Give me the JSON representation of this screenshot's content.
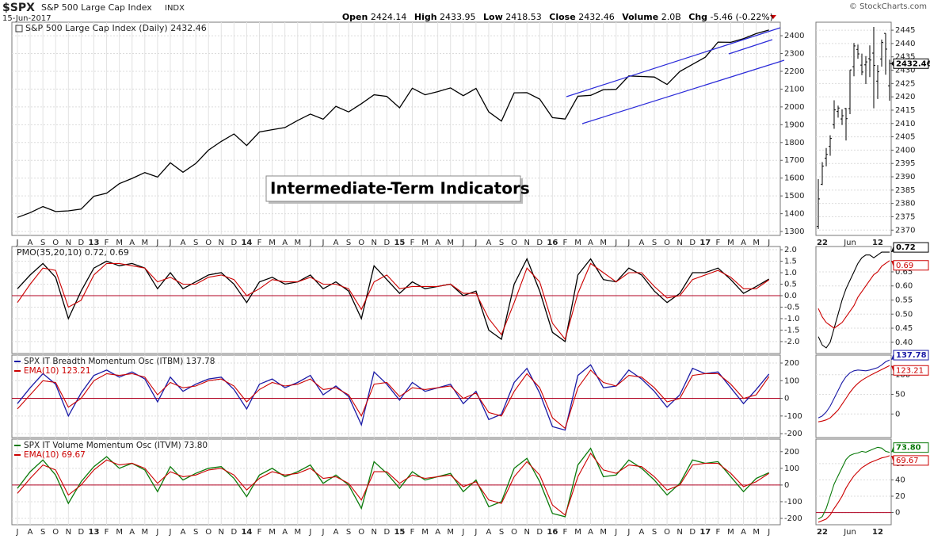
{
  "header": {
    "symbol": "$SPX",
    "name": "S&P 500 Large Cap Index",
    "exchange": "INDX",
    "date": "15-Jun-2017",
    "watermark": "© StockCharts.com",
    "stats": [
      {
        "label": "Open",
        "value": "2424.14"
      },
      {
        "label": "High",
        "value": "2433.95"
      },
      {
        "label": "Low",
        "value": "2418.53"
      },
      {
        "label": "Close",
        "value": "2432.46"
      },
      {
        "label": "Volume",
        "value": "2.0B"
      },
      {
        "label": "Chg",
        "value": "-5.46 (-0.22%)"
      }
    ]
  },
  "annotation": "Intermediate-Term Indicators",
  "chart_data": [
    {
      "type": "line",
      "title": "S&P 500 Large Cap Index (Daily) 2432.46",
      "grid": true,
      "categories": [
        "J",
        "A",
        "S",
        "O",
        "N",
        "D",
        "13",
        "F",
        "M",
        "A",
        "M",
        "J",
        "J",
        "A",
        "S",
        "O",
        "N",
        "D",
        "14",
        "F",
        "M",
        "A",
        "M",
        "J",
        "J",
        "A",
        "S",
        "O",
        "N",
        "D",
        "15",
        "F",
        "M",
        "A",
        "M",
        "J",
        "J",
        "A",
        "S",
        "O",
        "N",
        "D",
        "16",
        "F",
        "M",
        "A",
        "M",
        "J",
        "J",
        "A",
        "S",
        "O",
        "N",
        "D",
        "17",
        "F",
        "M",
        "A",
        "M",
        "J"
      ],
      "ylim": [
        1278,
        2476
      ],
      "yticks": [
        1300,
        1400,
        1500,
        1600,
        1700,
        1800,
        1900,
        2000,
        2100,
        2200,
        2300,
        2400
      ],
      "series": [
        {
          "color": "#000000",
          "values": [
            1379,
            1406,
            1440,
            1412,
            1416,
            1426,
            1498,
            1515,
            1569,
            1598,
            1631,
            1606,
            1686,
            1633,
            1682,
            1757,
            1806,
            1848,
            1783,
            1859,
            1872,
            1884,
            1924,
            1960,
            1931,
            2003,
            1972,
            2018,
            2068,
            2059,
            1995,
            2105,
            2068,
            2086,
            2107,
            2063,
            2104,
            1972,
            1920,
            2079,
            2080,
            2044,
            1940,
            1932,
            2060,
            2065,
            2097,
            2099,
            2174,
            2171,
            2168,
            2126,
            2199,
            2239,
            2279,
            2364,
            2363,
            2384,
            2412,
            2432
          ]
        }
      ]
    },
    {
      "type": "line",
      "title": "PMO(35,20,10) 0.72, 0.69",
      "grid": true,
      "reference_line": 0,
      "ylim": [
        -2.52,
        2.14
      ],
      "yticks": [
        {
          "value": -2,
          "label": "-2.0"
        },
        -1.5,
        {
          "value": -1,
          "label": "-1.0"
        },
        -0.5,
        {
          "value": 0,
          "label": "0.0"
        },
        0.5,
        {
          "value": 1,
          "label": "1.0"
        },
        1.5,
        {
          "value": 2,
          "label": "2.0"
        }
      ],
      "series": [
        {
          "color": "#000000",
          "values": [
            0.3,
            0.9,
            1.4,
            0.8,
            -1.0,
            0.2,
            1.2,
            1.5,
            1.3,
            1.4,
            1.2,
            0.3,
            1.0,
            0.3,
            0.6,
            0.9,
            1.0,
            0.5,
            -0.3,
            0.6,
            0.8,
            0.5,
            0.6,
            0.9,
            0.3,
            0.6,
            0.2,
            -1.0,
            1.3,
            0.7,
            0.1,
            0.6,
            0.3,
            0.4,
            0.5,
            0.0,
            0.2,
            -1.5,
            -1.9,
            0.5,
            1.6,
            0.2,
            -1.6,
            -2.0,
            0.9,
            1.6,
            0.7,
            0.6,
            1.2,
            0.9,
            0.2,
            -0.3,
            0.1,
            1.0,
            1.0,
            1.2,
            0.7,
            0.1,
            0.4,
            0.72
          ]
        },
        {
          "color": "#cc0000",
          "values": [
            -0.3,
            0.5,
            1.2,
            1.1,
            -0.5,
            -0.2,
            0.9,
            1.4,
            1.4,
            1.3,
            1.2,
            0.6,
            0.8,
            0.5,
            0.5,
            0.8,
            0.9,
            0.7,
            0.0,
            0.3,
            0.7,
            0.6,
            0.6,
            0.8,
            0.5,
            0.5,
            0.3,
            -0.6,
            0.6,
            0.9,
            0.3,
            0.4,
            0.4,
            0.4,
            0.5,
            0.1,
            0.1,
            -1.0,
            -1.7,
            -0.3,
            1.2,
            0.6,
            -1.2,
            -1.9,
            0.1,
            1.4,
            1.0,
            0.6,
            1.0,
            1.0,
            0.4,
            -0.1,
            0.0,
            0.7,
            0.9,
            1.1,
            0.8,
            0.3,
            0.3,
            0.69
          ]
        }
      ]
    },
    {
      "type": "line",
      "grid": true,
      "reference_line": 0,
      "ylim": [
        -222,
        245
      ],
      "yticks": [
        -200,
        -100,
        0,
        100,
        200
      ],
      "series": [
        {
          "name": "SPX IT Breadth Momentum Osc (ITBM) 137.78",
          "color": "#1a1aa6",
          "values": [
            -30,
            60,
            140,
            80,
            -100,
            30,
            130,
            160,
            120,
            150,
            110,
            -20,
            120,
            40,
            80,
            110,
            120,
            50,
            -60,
            80,
            110,
            60,
            90,
            130,
            20,
            70,
            10,
            -150,
            150,
            80,
            -10,
            90,
            40,
            60,
            80,
            -30,
            40,
            -120,
            -90,
            90,
            170,
            30,
            -160,
            -180,
            130,
            190,
            60,
            70,
            160,
            110,
            40,
            -50,
            20,
            170,
            140,
            150,
            60,
            -30,
            50,
            137.78
          ]
        },
        {
          "name": "EMA(10) 123.21",
          "color": "#cc0000",
          "values": [
            -60,
            20,
            100,
            90,
            -50,
            0,
            100,
            140,
            130,
            140,
            120,
            20,
            90,
            60,
            70,
            100,
            110,
            70,
            -20,
            50,
            90,
            70,
            80,
            110,
            50,
            60,
            20,
            -100,
            80,
            90,
            10,
            60,
            50,
            60,
            70,
            0,
            30,
            -80,
            -100,
            40,
            140,
            60,
            -110,
            -170,
            60,
            160,
            90,
            70,
            130,
            120,
            60,
            -20,
            0,
            130,
            140,
            140,
            80,
            0,
            20,
            123.21
          ]
        }
      ]
    },
    {
      "type": "line",
      "grid": true,
      "reference_line": 0,
      "ylim": [
        -238,
        275
      ],
      "yticks": [
        -200,
        -100,
        0,
        100,
        200
      ],
      "categories": [
        "J",
        "A",
        "S",
        "O",
        "N",
        "D",
        "13",
        "F",
        "M",
        "A",
        "M",
        "J",
        "J",
        "A",
        "S",
        "O",
        "N",
        "D",
        "14",
        "F",
        "M",
        "A",
        "M",
        "J",
        "J",
        "A",
        "S",
        "O",
        "N",
        "D",
        "15",
        "F",
        "M",
        "A",
        "M",
        "J",
        "J",
        "A",
        "S",
        "O",
        "N",
        "D",
        "16",
        "F",
        "M",
        "A",
        "M",
        "J",
        "J",
        "A",
        "S",
        "O",
        "N",
        "D",
        "17",
        "F",
        "M",
        "A",
        "M",
        "J"
      ],
      "series": [
        {
          "name": "SPX IT Volume Momentum Osc (ITVM) 73.80",
          "color": "#0a7a0a",
          "values": [
            -20,
            80,
            150,
            60,
            -110,
            20,
            110,
            170,
            100,
            130,
            90,
            -40,
            110,
            30,
            70,
            100,
            110,
            40,
            -70,
            60,
            100,
            50,
            80,
            120,
            10,
            60,
            0,
            -140,
            140,
            70,
            -20,
            80,
            30,
            50,
            70,
            -40,
            30,
            -130,
            -100,
            100,
            160,
            20,
            -170,
            -190,
            120,
            220,
            50,
            60,
            150,
            100,
            30,
            -60,
            10,
            150,
            130,
            140,
            50,
            -40,
            40,
            73.8
          ]
        },
        {
          "name": "EMA(10) 69.67",
          "color": "#cc0000",
          "values": [
            -50,
            40,
            120,
            90,
            -60,
            0,
            90,
            150,
            120,
            130,
            100,
            10,
            80,
            50,
            60,
            90,
            100,
            60,
            -30,
            40,
            80,
            60,
            70,
            100,
            40,
            50,
            10,
            -90,
            80,
            80,
            10,
            60,
            40,
            50,
            60,
            -10,
            20,
            -90,
            -110,
            50,
            140,
            60,
            -120,
            -180,
            50,
            190,
            90,
            70,
            120,
            110,
            50,
            -30,
            0,
            120,
            130,
            130,
            70,
            -10,
            20,
            69.67
          ]
        }
      ]
    },
    {
      "type": "ohlc",
      "grid": true,
      "color": "#000000",
      "last_value_label": "2432.46",
      "categories": [
        null,
        "22",
        null,
        null,
        null,
        null,
        null,
        null,
        "Jun",
        null,
        null,
        null,
        null,
        null,
        null,
        "12",
        null,
        null,
        null
      ],
      "ylim": [
        2368,
        2448
      ],
      "yticks": [
        2370,
        2375,
        2380,
        2385,
        2390,
        2395,
        2400,
        2405,
        2410,
        2415,
        2420,
        2425,
        2430,
        2435,
        2440,
        2445
      ],
      "open": [
        2371.4,
        2387.2,
        2397.0,
        2401.4,
        2409.5,
        2414.5,
        2411.7,
        2415.6,
        2415.6,
        2431.3,
        2437.8,
        2431.9,
        2432.0,
        2434.3,
        2436.4,
        2425.9,
        2434.2,
        2443.8,
        2424.14
      ],
      "high": [
        2389.1,
        2395.5,
        2400.8,
        2405.6,
        2418.7,
        2416.7,
        2415.3,
        2415.8,
        2430.1,
        2440.2,
        2439.6,
        2436.2,
        2435.3,
        2439.3,
        2446.2,
        2431.9,
        2441.5,
        2443.8,
        2433.95
      ],
      "low": [
        2370.4,
        2386.9,
        2393.9,
        2397.9,
        2408.0,
        2412.2,
        2409.4,
        2403.6,
        2413.5,
        2427.7,
        2434.3,
        2428.1,
        2424.8,
        2427.4,
        2415.7,
        2419.2,
        2431.3,
        2428.3,
        2418.53
      ],
      "close": [
        2381.7,
        2394.0,
        2398.4,
        2404.4,
        2415.1,
        2415.8,
        2412.9,
        2411.8,
        2430.1,
        2439.1,
        2436.1,
        2429.3,
        2433.1,
        2433.8,
        2431.8,
        2429.4,
        2440.4,
        2437.9,
        2432.46
      ]
    },
    {
      "type": "line",
      "grid": true,
      "ylim": [
        0.36,
        0.74
      ],
      "yticks": [
        {
          "value": 0.4,
          "label": "0.40"
        },
        0.45,
        {
          "value": 0.5,
          "label": "0.50"
        },
        0.55,
        {
          "value": 0.6,
          "label": "0.60"
        },
        0.65
      ],
      "series": [
        {
          "color": "#000000",
          "last_value_label": "0.72",
          "values": [
            0.42,
            0.39,
            0.38,
            0.4,
            0.45,
            0.5,
            0.55,
            0.59,
            0.62,
            0.65,
            0.68,
            0.7,
            0.71,
            0.71,
            0.7,
            0.71,
            0.72,
            0.72,
            0.72
          ]
        },
        {
          "color": "#cc0000",
          "last_value_label": "0.69",
          "values": [
            0.52,
            0.49,
            0.47,
            0.46,
            0.45,
            0.46,
            0.47,
            0.49,
            0.51,
            0.53,
            0.56,
            0.58,
            0.6,
            0.62,
            0.64,
            0.65,
            0.67,
            0.68,
            0.69
          ]
        }
      ]
    },
    {
      "type": "line",
      "grid": true,
      "ylim": [
        -60,
        150
      ],
      "yticks": [
        0,
        50,
        100
      ],
      "series": [
        {
          "color": "#1a1aa6",
          "last_value_label": "137.78",
          "values": [
            -10,
            -5,
            5,
            20,
            40,
            60,
            80,
            95,
            105,
            110,
            112,
            111,
            110,
            112,
            115,
            118,
            125,
            133,
            137.78
          ]
        },
        {
          "color": "#cc0000",
          "last_value_label": "123.21",
          "values": [
            -20,
            -18,
            -15,
            -10,
            0,
            10,
            25,
            40,
            55,
            68,
            78,
            86,
            92,
            98,
            103,
            108,
            113,
            118,
            123.21
          ]
        }
      ]
    },
    {
      "type": "line",
      "grid": true,
      "reference_line": 0,
      "ylim": [
        -15,
        90
      ],
      "yticks": [
        0,
        20,
        40,
        60
      ],
      "categories": [
        null,
        "22",
        null,
        null,
        null,
        null,
        null,
        null,
        "Jun",
        null,
        null,
        null,
        null,
        null,
        null,
        "12",
        null,
        null,
        null
      ],
      "series": [
        {
          "color": "#0a7a0a",
          "last_value_label": "73.80",
          "values": [
            -8,
            -5,
            5,
            20,
            35,
            45,
            55,
            65,
            70,
            72,
            73,
            75,
            74,
            76,
            78,
            80,
            79,
            75,
            73.8
          ]
        },
        {
          "color": "#cc0000",
          "last_value_label": "69.67",
          "values": [
            -12,
            -10,
            -8,
            -3,
            5,
            12,
            20,
            30,
            38,
            45,
            50,
            55,
            58,
            61,
            63,
            65,
            67,
            68,
            69.67
          ]
        }
      ]
    }
  ]
}
